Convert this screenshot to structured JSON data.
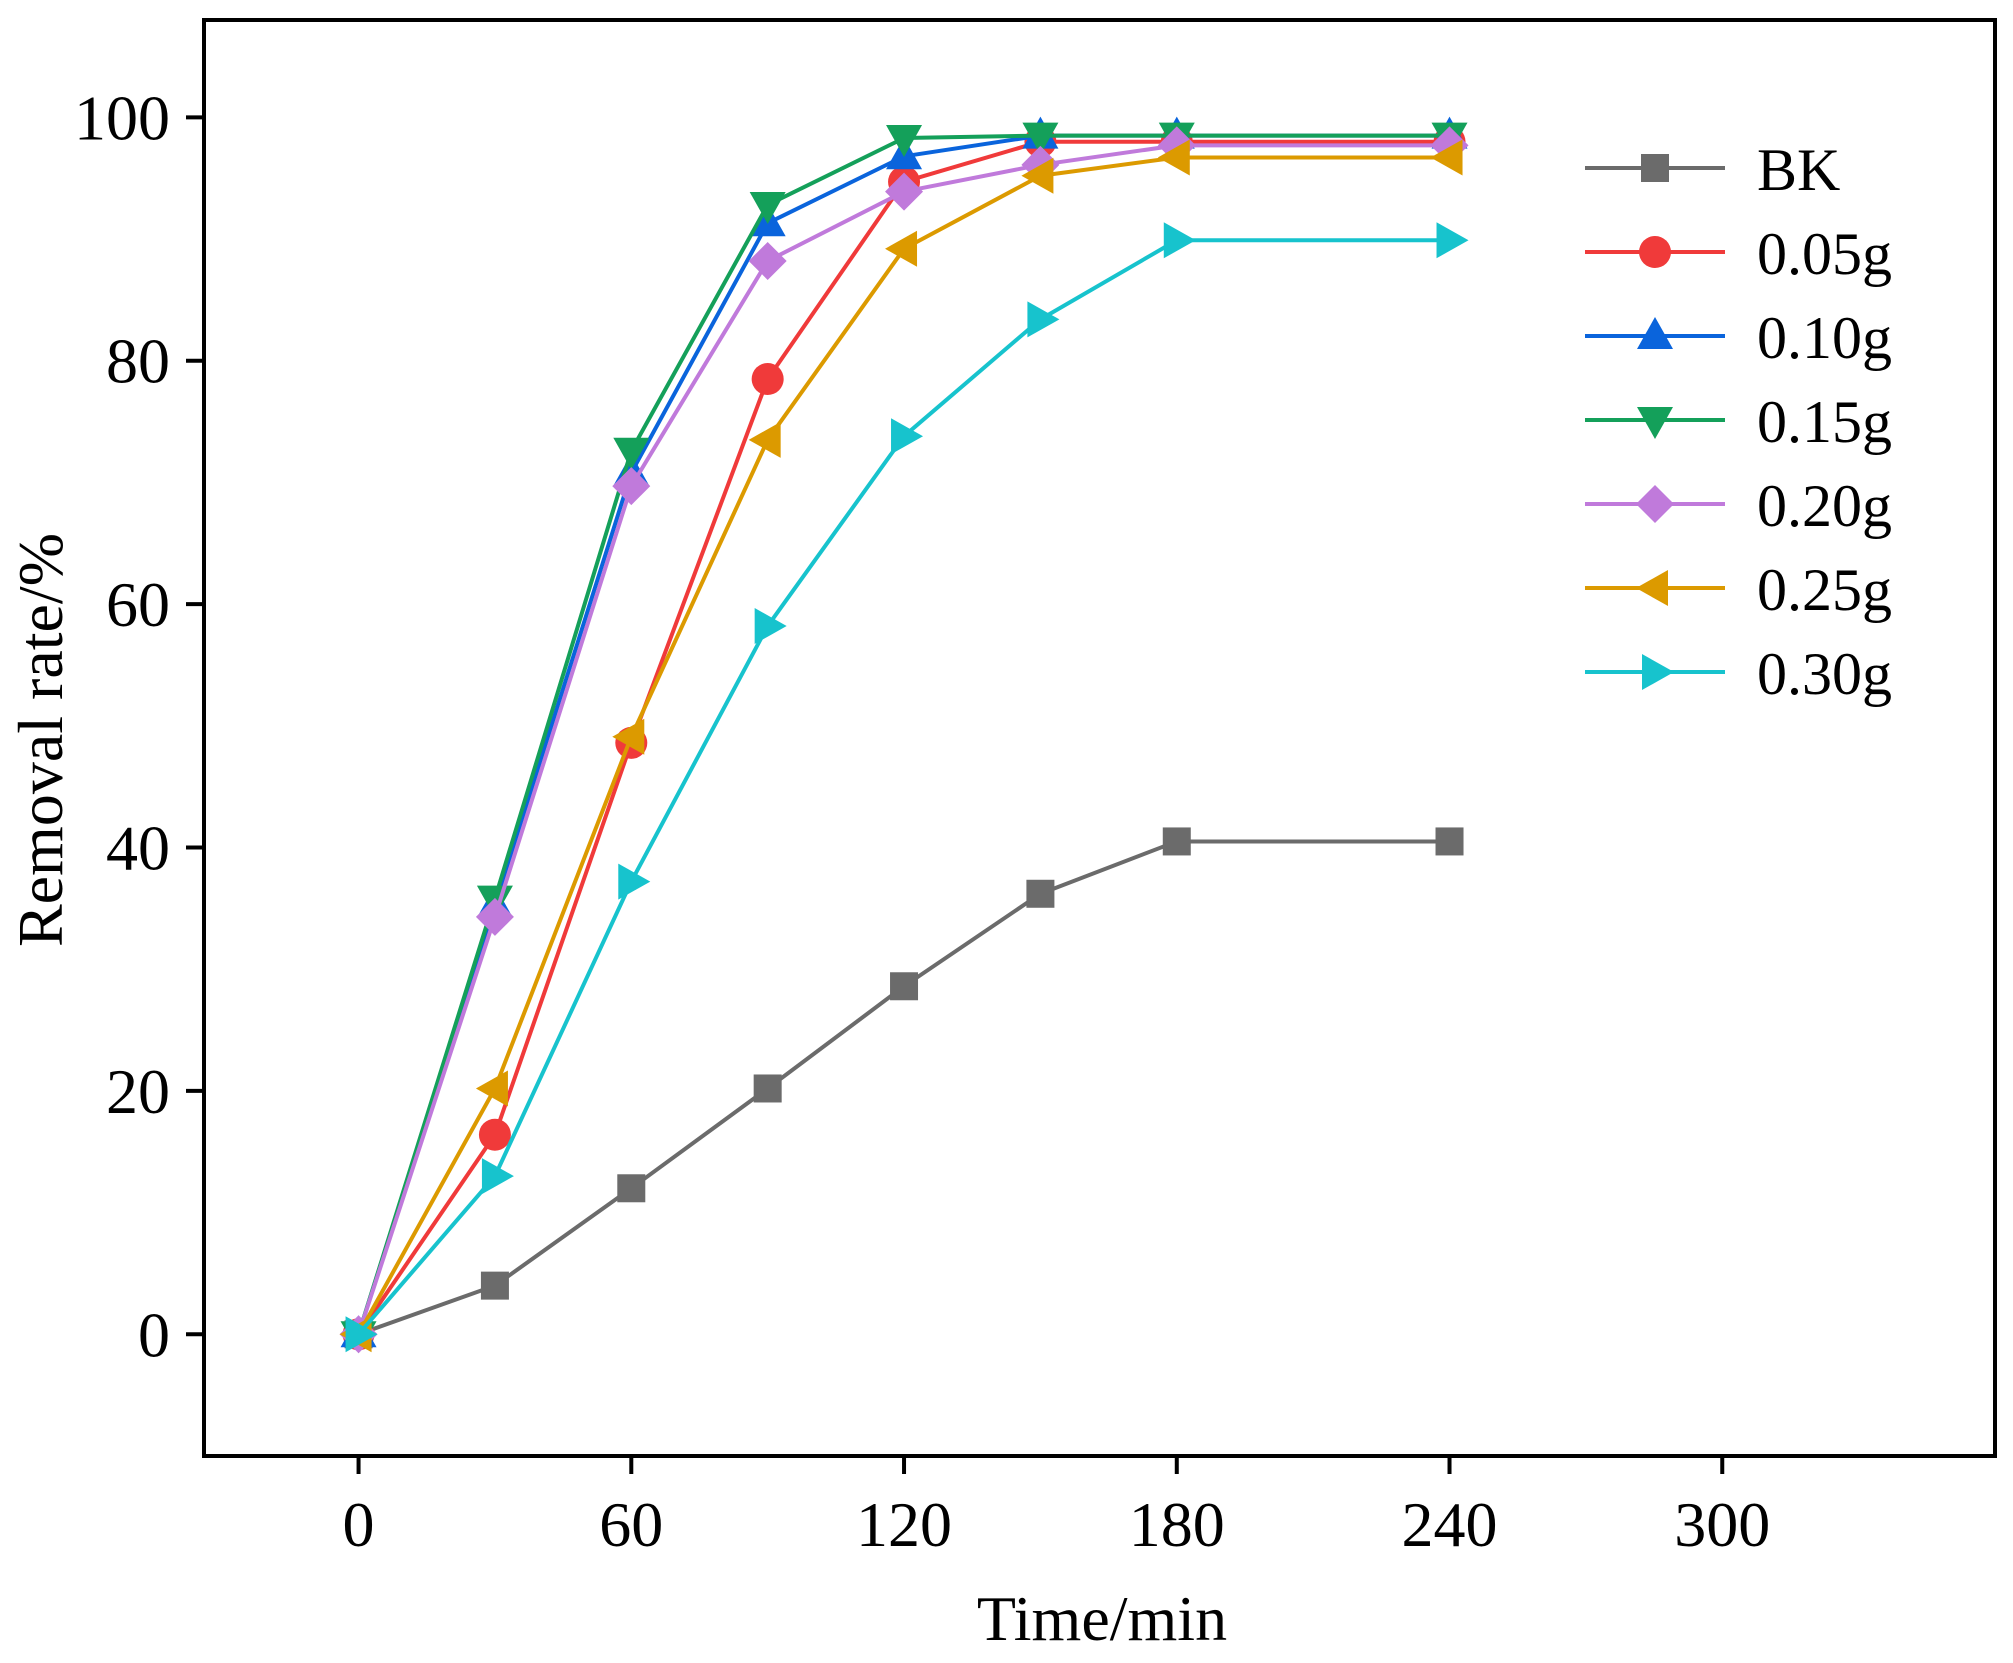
{
  "chart_data": {
    "type": "line",
    "title": "",
    "xlabel": "Time/min",
    "ylabel": "Removal rate/%",
    "xlim": [
      -34,
      360
    ],
    "ylim": [
      -10,
      108
    ],
    "xticks": [
      0,
      60,
      120,
      180,
      240,
      300
    ],
    "yticks": [
      0,
      20,
      40,
      60,
      80,
      100
    ],
    "legend_position": "top-right",
    "grid": false,
    "x": [
      0,
      30,
      60,
      90,
      120,
      150,
      180,
      240
    ],
    "series": [
      {
        "name": "BK",
        "color": "#6b6b6b",
        "marker": "square",
        "values": [
          0,
          4,
          12,
          20.2,
          28.6,
          36.2,
          40.5,
          40.5
        ]
      },
      {
        "name": "0.05g",
        "color": "#f03a3a",
        "marker": "circle",
        "values": [
          0,
          16.4,
          48.6,
          78.5,
          94.7,
          98.0,
          98.0,
          98.0
        ]
      },
      {
        "name": "0.10g",
        "color": "#0a64dc",
        "marker": "triangle-up",
        "values": [
          0,
          35.3,
          70.8,
          91.3,
          96.8,
          98.5,
          98.5,
          98.5
        ]
      },
      {
        "name": "0.15g",
        "color": "#14a05a",
        "marker": "triangle-down",
        "values": [
          0,
          35.8,
          72.6,
          92.8,
          98.3,
          98.5,
          98.5,
          98.5
        ]
      },
      {
        "name": "0.20g",
        "color": "#c07adb",
        "marker": "diamond",
        "values": [
          0,
          34.3,
          69.7,
          88.2,
          93.9,
          96.1,
          97.7,
          97.7
        ]
      },
      {
        "name": "0.25g",
        "color": "#dc9a00",
        "marker": "triangle-left",
        "values": [
          0,
          20.2,
          49.1,
          73.5,
          89.2,
          95.2,
          96.7,
          96.7
        ]
      },
      {
        "name": "0.30g",
        "color": "#17c3cd",
        "marker": "triangle-right",
        "values": [
          0,
          13,
          37.2,
          58.2,
          73.8,
          83.4,
          89.9,
          89.9
        ]
      }
    ]
  }
}
